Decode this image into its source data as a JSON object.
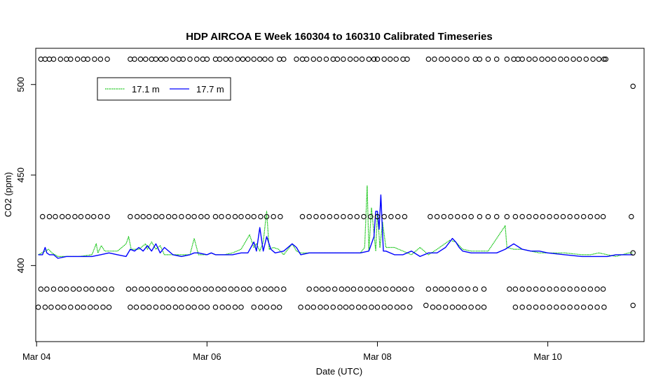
{
  "chart_data": {
    "type": "line",
    "title": "HDP AIRCOA E  Week 160304 to 160310  Calibrated Timeseries",
    "xlabel": "Date (UTC)",
    "ylabel": "CO2 (ppm)",
    "x_unit": "day (Mar 04 = 4.0)",
    "xlim": [
      3.99,
      11.13
    ],
    "ylim": [
      358,
      520
    ],
    "x_ticks": [
      {
        "value": 4,
        "label": "Mar 04"
      },
      {
        "value": 6,
        "label": "Mar 06"
      },
      {
        "value": 8,
        "label": "Mar 08"
      },
      {
        "value": 10,
        "label": "Mar 10"
      }
    ],
    "y_ticks": [
      {
        "value": 400,
        "label": "400"
      },
      {
        "value": 450,
        "label": "450"
      },
      {
        "value": 500,
        "label": "500"
      }
    ],
    "grid": false,
    "legend": {
      "position": "top-left",
      "entries": [
        {
          "label": "17.1 m",
          "color": "#00c000"
        },
        {
          "label": "17.7 m",
          "color": "#0000ff"
        }
      ]
    },
    "series": [
      {
        "name": "17.1 m",
        "color": "#00c000",
        "x": [
          4.02,
          4.1,
          4.14,
          4.18,
          4.25,
          4.35,
          4.5,
          4.65,
          4.7,
          4.72,
          4.76,
          4.8,
          4.85,
          4.95,
          5.05,
          5.08,
          5.11,
          5.2,
          5.28,
          5.3,
          5.35,
          5.4,
          5.45,
          5.5,
          5.55,
          5.6,
          5.7,
          5.8,
          5.85,
          5.9,
          6.0,
          6.05,
          6.1,
          6.2,
          6.3,
          6.4,
          6.5,
          6.55,
          6.58,
          6.62,
          6.66,
          6.7,
          6.73,
          6.78,
          6.84,
          6.9,
          7.0,
          7.05,
          7.1,
          7.2,
          7.4,
          7.6,
          7.8,
          7.85,
          7.88,
          7.9,
          7.93,
          7.98,
          8.0,
          8.03,
          8.06,
          8.1,
          8.2,
          8.3,
          8.4,
          8.5,
          8.6,
          8.7,
          8.85,
          8.92,
          9.0,
          9.1,
          9.2,
          9.3,
          9.4,
          9.5,
          9.52,
          9.6,
          9.7,
          9.8,
          9.9,
          10.0,
          10.2,
          10.4,
          10.5,
          10.6,
          10.7,
          10.8,
          10.95,
          11.0
        ],
        "y": [
          406,
          408,
          409,
          407,
          405,
          405,
          405,
          406,
          412,
          407,
          411,
          408,
          408,
          408,
          412,
          416,
          409,
          409,
          412,
          409,
          413,
          409,
          411,
          406,
          406,
          406,
          406,
          406,
          415,
          406,
          406,
          407,
          406,
          406,
          407,
          409,
          417,
          410,
          412,
          408,
          413,
          430,
          409,
          410,
          409,
          406,
          412,
          408,
          407,
          407,
          407,
          407,
          407,
          410,
          444,
          408,
          432,
          408,
          430,
          410,
          424,
          410,
          410,
          408,
          406,
          410,
          406,
          409,
          414,
          413,
          409,
          408,
          408,
          408,
          415,
          422,
          410,
          409,
          409,
          408,
          407,
          407,
          407,
          406,
          406,
          407,
          406,
          405,
          407,
          407
        ]
      },
      {
        "name": "17.7 m",
        "color": "#0000ff",
        "x": [
          4.02,
          4.07,
          4.1,
          4.12,
          4.15,
          4.2,
          4.25,
          4.35,
          4.5,
          4.65,
          4.75,
          4.85,
          4.95,
          5.05,
          5.1,
          5.15,
          5.2,
          5.25,
          5.3,
          5.35,
          5.4,
          5.45,
          5.5,
          5.6,
          5.7,
          5.8,
          5.85,
          5.9,
          6.0,
          6.05,
          6.1,
          6.2,
          6.3,
          6.4,
          6.48,
          6.55,
          6.58,
          6.62,
          6.66,
          6.7,
          6.75,
          6.8,
          6.9,
          7.0,
          7.05,
          7.1,
          7.2,
          7.4,
          7.6,
          7.8,
          7.9,
          7.93,
          7.96,
          7.98,
          8.0,
          8.02,
          8.04,
          8.07,
          8.1,
          8.2,
          8.3,
          8.4,
          8.5,
          8.6,
          8.7,
          8.8,
          8.88,
          8.92,
          8.96,
          9.0,
          9.1,
          9.2,
          9.3,
          9.4,
          9.5,
          9.6,
          9.7,
          9.8,
          9.9,
          10.0,
          10.2,
          10.4,
          10.6,
          10.7,
          10.8,
          10.95,
          11.0
        ],
        "y": [
          406,
          406,
          410,
          407,
          406,
          406,
          404,
          405,
          405,
          405,
          406,
          407,
          406,
          405,
          409,
          408,
          410,
          408,
          411,
          408,
          412,
          407,
          410,
          406,
          405,
          406,
          407,
          407,
          406,
          407,
          406,
          406,
          406,
          407,
          407,
          413,
          408,
          421,
          408,
          416,
          409,
          407,
          408,
          412,
          410,
          406,
          407,
          407,
          407,
          407,
          408,
          412,
          416,
          430,
          430,
          420,
          439,
          408,
          408,
          406,
          406,
          408,
          405,
          407,
          407,
          410,
          415,
          413,
          410,
          408,
          407,
          407,
          407,
          407,
          409,
          412,
          409,
          408,
          408,
          407,
          406,
          405,
          405,
          405,
          406,
          406,
          406
        ]
      },
      {
        "name": "",
        "type": "scatter",
        "marker": "open-circle",
        "x": [
          4.05,
          4.1,
          4.15,
          4.2,
          4.28,
          4.35,
          4.4,
          4.48,
          4.55,
          4.6,
          4.68,
          4.75,
          4.83,
          5.1,
          5.15,
          5.22,
          5.28,
          5.35,
          5.4,
          5.46,
          5.52,
          5.6,
          5.67,
          5.72,
          5.8,
          5.88,
          5.95,
          6.0,
          6.1,
          6.15,
          6.22,
          6.28,
          6.36,
          6.42,
          6.48,
          6.55,
          6.62,
          6.68,
          6.75,
          6.85,
          6.9,
          7.05,
          7.12,
          7.17,
          7.25,
          7.32,
          7.4,
          7.48,
          7.53,
          7.6,
          7.68,
          7.75,
          7.82,
          7.9,
          7.96,
          8.0,
          8.08,
          8.15,
          8.22,
          8.3,
          8.35,
          8.6,
          8.67,
          8.75,
          8.82,
          8.9,
          8.97,
          9.05,
          9.15,
          9.2,
          9.3,
          9.4,
          9.52,
          9.6,
          9.65,
          9.7,
          9.78,
          9.85,
          9.93,
          10.0,
          10.07,
          10.15,
          10.22,
          10.3,
          10.37,
          10.45,
          10.53,
          10.6,
          10.66,
          10.68,
          11.0
        ],
        "y": [
          514,
          514,
          514,
          514,
          514,
          514,
          514,
          514,
          514,
          514,
          514,
          514,
          514,
          514,
          514,
          514,
          514,
          514,
          514,
          514,
          514,
          514,
          514,
          514,
          514,
          514,
          514,
          514,
          514,
          514,
          514,
          514,
          514,
          514,
          514,
          514,
          514,
          514,
          514,
          514,
          514,
          514,
          514,
          514,
          514,
          514,
          514,
          514,
          514,
          514,
          514,
          514,
          514,
          514,
          514,
          514,
          514,
          514,
          514,
          514,
          514,
          514,
          514,
          514,
          514,
          514,
          514,
          514,
          514,
          514,
          514,
          514,
          514,
          514,
          514,
          514,
          514,
          514,
          514,
          514,
          514,
          514,
          514,
          514,
          514,
          514,
          514,
          514,
          514,
          514,
          499
        ]
      },
      {
        "name": "",
        "type": "scatter",
        "marker": "open-circle",
        "x": [
          4.07,
          4.15,
          4.22,
          4.3,
          4.37,
          4.45,
          4.52,
          4.6,
          4.67,
          4.75,
          4.83,
          5.1,
          5.18,
          5.25,
          5.32,
          5.4,
          5.47,
          5.55,
          5.62,
          5.7,
          5.78,
          5.85,
          5.93,
          6.0,
          6.1,
          6.17,
          6.25,
          6.33,
          6.4,
          6.48,
          6.55,
          6.63,
          6.7,
          6.78,
          6.86,
          7.12,
          7.2,
          7.28,
          7.36,
          7.44,
          7.52,
          7.6,
          7.68,
          7.76,
          7.84,
          7.92,
          8.0,
          8.08,
          8.16,
          8.24,
          8.32,
          8.62,
          8.7,
          8.78,
          8.86,
          8.94,
          9.02,
          9.1,
          9.2,
          9.3,
          9.4,
          9.52,
          9.62,
          9.7,
          9.78,
          9.86,
          9.94,
          10.02,
          10.1,
          10.18,
          10.26,
          10.34,
          10.42,
          10.5,
          10.58,
          10.65,
          10.98,
          11.0
        ],
        "y": [
          427,
          427,
          427,
          427,
          427,
          427,
          427,
          427,
          427,
          427,
          427,
          427,
          427,
          427,
          427,
          427,
          427,
          427,
          427,
          427,
          427,
          427,
          427,
          427,
          427,
          427,
          427,
          427,
          427,
          427,
          427,
          427,
          427,
          427,
          427,
          427,
          427,
          427,
          427,
          427,
          427,
          427,
          427,
          427,
          427,
          427,
          427,
          427,
          427,
          427,
          427,
          427,
          427,
          427,
          427,
          427,
          427,
          427,
          427,
          427,
          427,
          427,
          427,
          427,
          427,
          427,
          427,
          427,
          427,
          427,
          427,
          427,
          427,
          427,
          427,
          427,
          427,
          407
        ]
      },
      {
        "name": "",
        "type": "scatter",
        "marker": "open-circle",
        "x": [
          4.05,
          4.12,
          4.2,
          4.28,
          4.35,
          4.43,
          4.5,
          4.58,
          4.65,
          4.73,
          4.8,
          4.88,
          5.08,
          5.15,
          5.23,
          5.3,
          5.38,
          5.45,
          5.53,
          5.6,
          5.68,
          5.75,
          5.83,
          5.9,
          5.98,
          6.05,
          6.13,
          6.2,
          6.28,
          6.35,
          6.43,
          6.5,
          6.6,
          6.68,
          6.75,
          6.82,
          6.9,
          7.2,
          7.28,
          7.35,
          7.42,
          7.5,
          7.58,
          7.65,
          7.72,
          7.8,
          7.88,
          7.95,
          8.02,
          8.1,
          8.18,
          8.25,
          8.32,
          8.4,
          8.6,
          8.68,
          8.75,
          8.82,
          8.9,
          8.98,
          9.06,
          9.15,
          9.25,
          9.55,
          9.62,
          9.7,
          9.78,
          9.86,
          9.94,
          10.02,
          10.1,
          10.18,
          10.26,
          10.34,
          10.42,
          10.5,
          10.58,
          10.65
        ],
        "y": [
          387,
          387,
          387,
          387,
          387,
          387,
          387,
          387,
          387,
          387,
          387,
          387,
          387,
          387,
          387,
          387,
          387,
          387,
          387,
          387,
          387,
          387,
          387,
          387,
          387,
          387,
          387,
          387,
          387,
          387,
          387,
          387,
          387,
          387,
          387,
          387,
          387,
          387,
          387,
          387,
          387,
          387,
          387,
          387,
          387,
          387,
          387,
          387,
          387,
          387,
          387,
          387,
          387,
          387,
          387,
          387,
          387,
          387,
          387,
          387,
          387,
          387,
          387,
          387,
          387,
          387,
          387,
          387,
          387,
          387,
          387,
          387,
          387,
          387,
          387,
          387,
          387,
          387
        ]
      },
      {
        "name": "",
        "type": "scatter",
        "marker": "open-circle",
        "x": [
          4.02,
          4.1,
          4.17,
          4.25,
          4.32,
          4.4,
          4.48,
          4.55,
          4.63,
          4.7,
          4.78,
          4.85,
          5.1,
          5.17,
          5.25,
          5.32,
          5.4,
          5.48,
          5.55,
          5.63,
          5.7,
          5.78,
          5.85,
          5.93,
          6.0,
          6.1,
          6.18,
          6.25,
          6.33,
          6.4,
          6.55,
          6.63,
          6.7,
          6.78,
          6.85,
          7.1,
          7.18,
          7.25,
          7.33,
          7.4,
          7.48,
          7.56,
          7.63,
          7.7,
          7.78,
          7.85,
          7.93,
          8.0,
          8.08,
          8.15,
          8.23,
          8.3,
          8.38,
          8.57,
          8.65,
          8.72,
          8.8,
          8.88,
          8.95,
          9.02,
          9.1,
          9.18,
          9.25,
          9.62,
          9.7,
          9.78,
          9.86,
          9.94,
          10.02,
          10.1,
          10.18,
          10.26,
          10.34,
          10.42,
          10.5,
          10.58,
          10.66,
          11.0
        ],
        "y": [
          377,
          377,
          377,
          377,
          377,
          377,
          377,
          377,
          377,
          377,
          377,
          377,
          377,
          377,
          377,
          377,
          377,
          377,
          377,
          377,
          377,
          377,
          377,
          377,
          377,
          377,
          377,
          377,
          377,
          377,
          377,
          377,
          377,
          377,
          377,
          377,
          377,
          377,
          377,
          377,
          377,
          377,
          377,
          377,
          377,
          377,
          377,
          377,
          377,
          377,
          377,
          377,
          377,
          378,
          377,
          377,
          377,
          377,
          377,
          377,
          377,
          377,
          377,
          377,
          377,
          377,
          377,
          377,
          377,
          377,
          377,
          377,
          377,
          377,
          377,
          377,
          377,
          378
        ]
      }
    ]
  }
}
